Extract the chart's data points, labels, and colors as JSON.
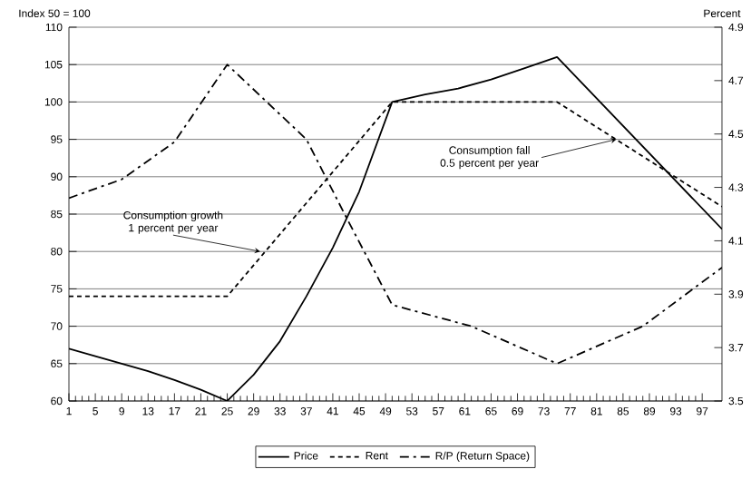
{
  "chart_data": {
    "type": "line",
    "xlim": [
      1,
      100
    ],
    "xticks": [
      1,
      5,
      9,
      13,
      17,
      21,
      25,
      29,
      33,
      37,
      41,
      45,
      49,
      53,
      57,
      61,
      65,
      69,
      73,
      77,
      81,
      85,
      89,
      93,
      97
    ],
    "ylim": [
      60,
      110
    ],
    "yticks": [
      60,
      65,
      70,
      75,
      80,
      85,
      90,
      95,
      100,
      105,
      110
    ],
    "y2lim": [
      3.5,
      4.9
    ],
    "y2ticks": [
      3.5,
      3.7,
      3.9,
      4.1,
      4.3,
      4.5,
      4.7,
      4.9
    ],
    "ylabel": "Index 50 = 100",
    "y2label": "Percent",
    "grid": "y",
    "legend": "bottom",
    "marker": "none",
    "series": [
      {
        "name": "Price",
        "color": "#000000",
        "line_style": "solid",
        "x": [
          1,
          5,
          9,
          13,
          17,
          21,
          25,
          29,
          33,
          37,
          41,
          45,
          50,
          55,
          60,
          65,
          70,
          75,
          100
        ],
        "values": [
          67,
          66,
          65,
          64,
          62.8,
          61.5,
          60,
          63.5,
          68,
          74,
          80.5,
          88,
          100,
          101,
          101.8,
          103,
          104.5,
          106,
          83
        ]
      },
      {
        "name": "Rent",
        "color": "#000000",
        "line_style": "dashed",
        "x": [
          1,
          25,
          50,
          75,
          100
        ],
        "values": [
          74,
          74,
          100,
          100,
          86
        ]
      },
      {
        "name": "R/P (Return Space)",
        "color": "#000000",
        "line_style": "dashdot",
        "axis": "y2",
        "x": [
          1,
          9,
          17,
          25,
          37,
          43,
          50,
          62,
          75,
          88,
          100
        ],
        "values": [
          4.26,
          4.33,
          4.47,
          4.76,
          4.48,
          4.19,
          3.86,
          3.78,
          3.64,
          3.78,
          4.0
        ]
      }
    ],
    "annotations": [
      {
        "text": "Consumption growth 1 percent per year",
        "x": 30,
        "y": 80
      },
      {
        "text": "Consumption fall 0.5 percent per year",
        "x": 84,
        "y": 95
      }
    ]
  }
}
